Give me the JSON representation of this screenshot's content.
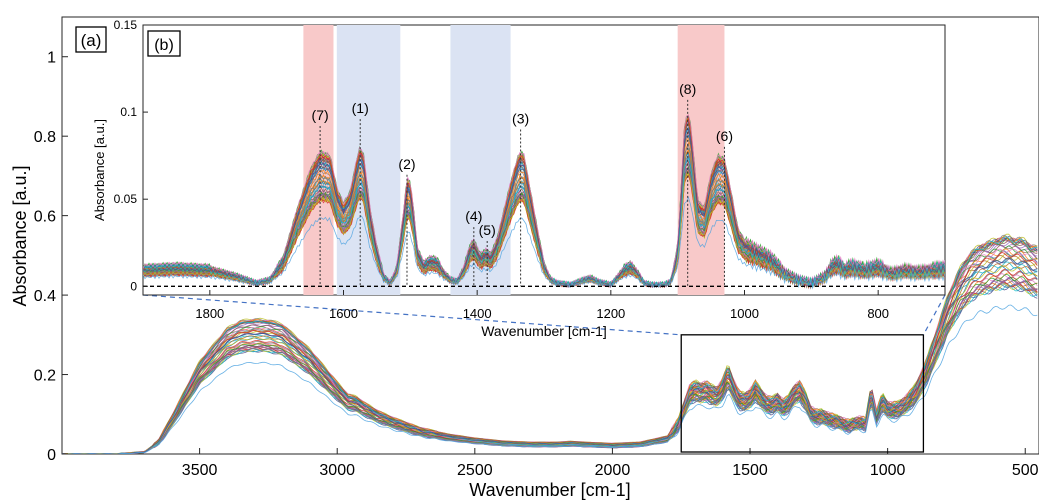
{
  "chart_data": [
    {
      "panel": "(a)",
      "type": "line",
      "title": "",
      "xlabel": "Wavenumber [cm-1]",
      "ylabel": "Absorbance [a.u.]",
      "x_reversed": true,
      "xlim": [
        4000,
        450
      ],
      "ylim": [
        0,
        1.1
      ],
      "xticks": [
        3500,
        3000,
        2500,
        2000,
        1500,
        1000,
        500
      ],
      "yticks": [
        0,
        0.2,
        0.4,
        0.6,
        0.8,
        1
      ],
      "ytick_labels": [
        "0",
        "0.2",
        "0.4",
        "0.6",
        "0.8",
        "1"
      ],
      "grid": false,
      "series_count_note_free": true,
      "mean_spectrum": {
        "x": [
          4000,
          3800,
          3700,
          3650,
          3600,
          3500,
          3400,
          3350,
          3300,
          3250,
          3200,
          3100,
          3000,
          2960,
          2930,
          2900,
          2850,
          2800,
          2700,
          2600,
          2500,
          2400,
          2300,
          2200,
          2150,
          2100,
          2000,
          1900,
          1800,
          1760,
          1740,
          1720,
          1700,
          1680,
          1660,
          1640,
          1620,
          1600,
          1580,
          1560,
          1540,
          1520,
          1500,
          1480,
          1460,
          1440,
          1420,
          1400,
          1380,
          1360,
          1340,
          1320,
          1300,
          1280,
          1260,
          1240,
          1220,
          1200,
          1180,
          1160,
          1140,
          1120,
          1100,
          1080,
          1060,
          1040,
          1020,
          1000,
          980,
          960,
          940,
          920,
          900,
          880,
          860,
          840,
          820,
          800,
          780,
          760,
          740,
          720,
          700,
          680,
          660,
          640,
          620,
          600,
          580,
          560,
          540,
          520,
          500,
          480,
          460,
          450
        ],
        "y": [
          0.0,
          0.0,
          0.005,
          0.03,
          0.09,
          0.22,
          0.3,
          0.318,
          0.322,
          0.32,
          0.31,
          0.25,
          0.17,
          0.14,
          0.135,
          0.12,
          0.1,
          0.085,
          0.06,
          0.045,
          0.035,
          0.028,
          0.025,
          0.025,
          0.027,
          0.025,
          0.022,
          0.025,
          0.04,
          0.08,
          0.12,
          0.16,
          0.17,
          0.165,
          0.17,
          0.16,
          0.155,
          0.175,
          0.21,
          0.175,
          0.145,
          0.14,
          0.15,
          0.17,
          0.15,
          0.135,
          0.13,
          0.14,
          0.125,
          0.135,
          0.16,
          0.17,
          0.145,
          0.11,
          0.1,
          0.1,
          0.095,
          0.09,
          0.085,
          0.08,
          0.075,
          0.08,
          0.085,
          0.08,
          0.16,
          0.1,
          0.14,
          0.12,
          0.118,
          0.12,
          0.13,
          0.145,
          0.16,
          0.19,
          0.22,
          0.26,
          0.3,
          0.34,
          0.38,
          0.41,
          0.44,
          0.46,
          0.48,
          0.49,
          0.5,
          0.505,
          0.51,
          0.515,
          0.52,
          0.52,
          0.515,
          0.515,
          0.51,
          0.5,
          0.495,
          0.49
        ]
      },
      "inset_box_x": [
        1750,
        870
      ],
      "inset_box_y": [
        0,
        0.3
      ]
    },
    {
      "panel": "(b)",
      "type": "line",
      "title": "",
      "xlabel": "Wavenumber [cm-1]",
      "ylabel": "Absorbance [a.u.]",
      "x_reversed": true,
      "xlim": [
        1900,
        700
      ],
      "ylim": [
        -0.005,
        0.15
      ],
      "xticks": [
        1800,
        1600,
        1400,
        1200,
        1000,
        800
      ],
      "yticks": [
        0,
        0.05,
        0.1,
        0.15
      ],
      "ytick_labels": [
        "0",
        "0.05",
        "0.1",
        "0.15"
      ],
      "baseline": 0,
      "shaded_regions": [
        {
          "x": [
            1660,
            1615
          ],
          "color": "#f8c9c9"
        },
        {
          "x": [
            1610,
            1515
          ],
          "color": "#dbe3f3"
        },
        {
          "x": [
            1440,
            1350
          ],
          "color": "#dbe3f3"
        },
        {
          "x": [
            1100,
            1030
          ],
          "color": "#f8c9c9"
        }
      ],
      "peaks": [
        {
          "label": "(7)",
          "x": 1635,
          "y": 0.092
        },
        {
          "label": "(1)",
          "x": 1575,
          "y": 0.096
        },
        {
          "label": "(2)",
          "x": 1505,
          "y": 0.064
        },
        {
          "label": "(4)",
          "x": 1405,
          "y": 0.034
        },
        {
          "label": "(5)",
          "x": 1385,
          "y": 0.026
        },
        {
          "label": "(3)",
          "x": 1335,
          "y": 0.09
        },
        {
          "label": "(8)",
          "x": 1085,
          "y": 0.107
        },
        {
          "label": "(6)",
          "x": 1030,
          "y": 0.08
        }
      ],
      "mean_spectrum": {
        "x": [
          1900,
          1850,
          1800,
          1760,
          1730,
          1710,
          1690,
          1670,
          1650,
          1635,
          1620,
          1610,
          1600,
          1590,
          1580,
          1575,
          1570,
          1560,
          1550,
          1540,
          1530,
          1520,
          1510,
          1505,
          1500,
          1495,
          1490,
          1480,
          1470,
          1460,
          1450,
          1440,
          1430,
          1420,
          1410,
          1405,
          1400,
          1395,
          1390,
          1385,
          1380,
          1370,
          1360,
          1350,
          1340,
          1335,
          1330,
          1320,
          1310,
          1300,
          1290,
          1280,
          1260,
          1240,
          1230,
          1220,
          1200,
          1180,
          1170,
          1160,
          1150,
          1140,
          1120,
          1110,
          1100,
          1095,
          1090,
          1085,
          1080,
          1070,
          1060,
          1050,
          1040,
          1030,
          1020,
          1010,
          1000,
          990,
          980,
          960,
          940,
          920,
          900,
          880,
          870,
          860,
          850,
          840,
          820,
          800,
          780,
          760,
          740,
          720,
          700
        ],
        "y": [
          0.01,
          0.011,
          0.01,
          0.006,
          0.002,
          0.004,
          0.015,
          0.04,
          0.062,
          0.072,
          0.07,
          0.052,
          0.044,
          0.05,
          0.068,
          0.075,
          0.07,
          0.04,
          0.02,
          0.006,
          0.002,
          0.01,
          0.04,
          0.058,
          0.055,
          0.04,
          0.02,
          0.012,
          0.015,
          0.014,
          0.008,
          0.004,
          0.003,
          0.01,
          0.022,
          0.024,
          0.02,
          0.016,
          0.018,
          0.019,
          0.016,
          0.025,
          0.04,
          0.055,
          0.068,
          0.072,
          0.07,
          0.05,
          0.03,
          0.012,
          0.004,
          0.002,
          0.001,
          0.004,
          0.005,
          0.003,
          0.001,
          0.01,
          0.012,
          0.008,
          0.002,
          0.001,
          0.001,
          0.003,
          0.02,
          0.05,
          0.085,
          0.094,
          0.085,
          0.045,
          0.042,
          0.06,
          0.07,
          0.068,
          0.05,
          0.03,
          0.024,
          0.022,
          0.02,
          0.016,
          0.008,
          0.004,
          0.002,
          0.006,
          0.012,
          0.014,
          0.01,
          0.012,
          0.01,
          0.012,
          0.008,
          0.01,
          0.009,
          0.01,
          0.011
        ]
      }
    }
  ],
  "palette": [
    "#1f77b4",
    "#d62728",
    "#ff7f0e",
    "#2ca02c",
    "#9467bd",
    "#8c564b",
    "#e377c2",
    "#7f7f7f",
    "#bcbd22",
    "#17becf",
    "#4a4a8c",
    "#b5651d"
  ],
  "colors": {
    "box": "#000000",
    "connector": "#4472c4",
    "baseline": "#000000"
  }
}
